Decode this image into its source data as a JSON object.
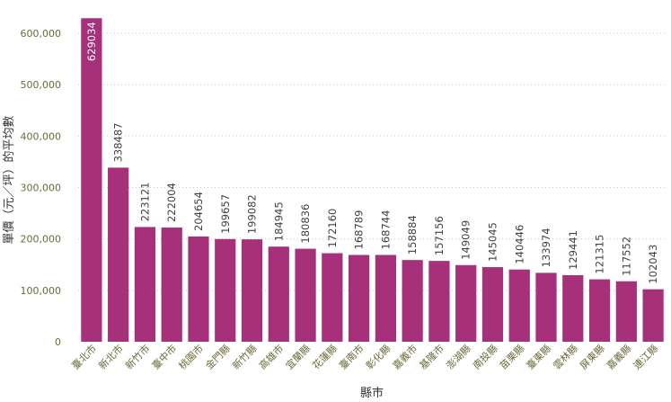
{
  "chart_data": {
    "type": "bar",
    "title": "",
    "xlabel": "縣市",
    "ylabel": "單價（元／坪）的平均數",
    "ylim": [
      0,
      640000
    ],
    "yticks": [
      0,
      100000,
      200000,
      300000,
      400000,
      500000,
      600000
    ],
    "ytick_labels": [
      "0",
      "100,000",
      "200,000",
      "300,000",
      "400,000",
      "500,000",
      "600,000"
    ],
    "grid": true,
    "bar_color": "#a6307a",
    "categories": [
      "臺北市",
      "新北市",
      "新竹市",
      "臺中市",
      "桃園市",
      "金門縣",
      "新竹縣",
      "高雄市",
      "宜蘭縣",
      "花蓮縣",
      "臺南市",
      "彰化縣",
      "嘉義市",
      "基隆市",
      "澎湖縣",
      "南投縣",
      "苗栗縣",
      "臺東縣",
      "雲林縣",
      "屏東縣",
      "嘉義縣",
      "連江縣"
    ],
    "values": [
      629034,
      338487,
      223121,
      222004,
      204654,
      199657,
      199082,
      184945,
      180836,
      172160,
      168789,
      168744,
      158884,
      157156,
      149049,
      145045,
      140446,
      133974,
      129441,
      121315,
      117552,
      102043
    ],
    "value_labels": [
      "629034",
      "338487",
      "223121",
      "222004",
      "204654",
      "199657",
      "199082",
      "184945",
      "180836",
      "172160",
      "168789",
      "168744",
      "158884",
      "157156",
      "149049",
      "145045",
      "140446",
      "133974",
      "129441",
      "121315",
      "117552",
      "102043"
    ]
  }
}
